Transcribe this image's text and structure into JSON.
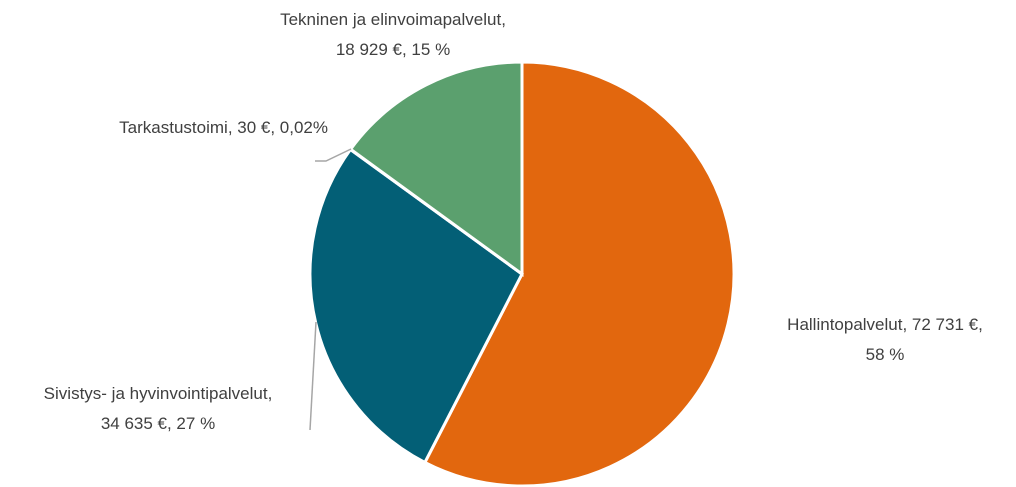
{
  "chart_data": {
    "type": "pie",
    "categories": [
      "Hallintopalvelut",
      "Sivistys- ja hyvinvointipalvelut",
      "Tarkastustoimi",
      "Tekninen ja elinvoimapalvelut"
    ],
    "values": [
      72731,
      34635,
      30,
      18929
    ],
    "labels": [
      [
        "Hallintopalvelut, 72 731 €,",
        "58 %"
      ],
      [
        "Sivistys- ja hyvinvointipalvelut,",
        "34 635 €, 27 %"
      ],
      [
        "Tarkastustoimi, 30 €, 0,02%"
      ],
      [
        "Tekninen ja elinvoimapalvelut,",
        "18 929 €, 15 %"
      ]
    ],
    "colors": [
      "#e2670e",
      "#035f76",
      "#7b5c9e",
      "#5ba06e"
    ]
  }
}
